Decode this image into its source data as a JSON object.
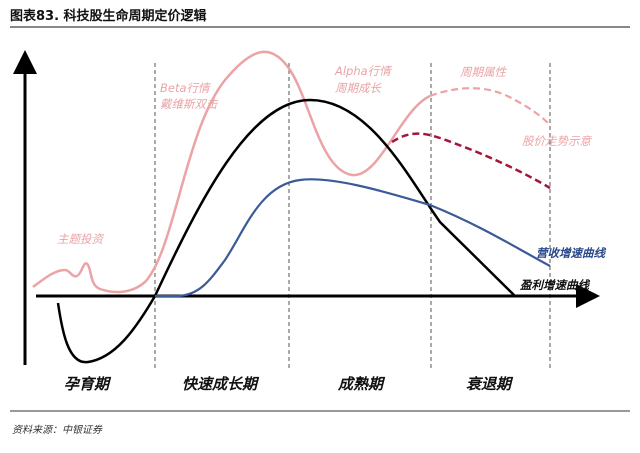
{
  "title": "图表83. 科技股生命周期定价逻辑",
  "annotations": {
    "beta_line1": "Beta行情",
    "beta_line2": "戴维斯双击",
    "alpha_line1": "Alpha行情",
    "alpha_line2": "周期成长",
    "cyclical": "周期属性",
    "price_trend": "股价走势示意",
    "theme": "主题投资",
    "revenue_curve": "营收增速曲线",
    "profit_curve": "盈利增速曲线"
  },
  "phases": [
    "孕育期",
    "快速成长期",
    "成熟期",
    "衰退期"
  ],
  "source": "资料来源：中银证券",
  "colors": {
    "price": "#eba3a6",
    "price_alt": "#a3173a",
    "revenue": "#3a5a98",
    "profit": "#000000"
  }
}
